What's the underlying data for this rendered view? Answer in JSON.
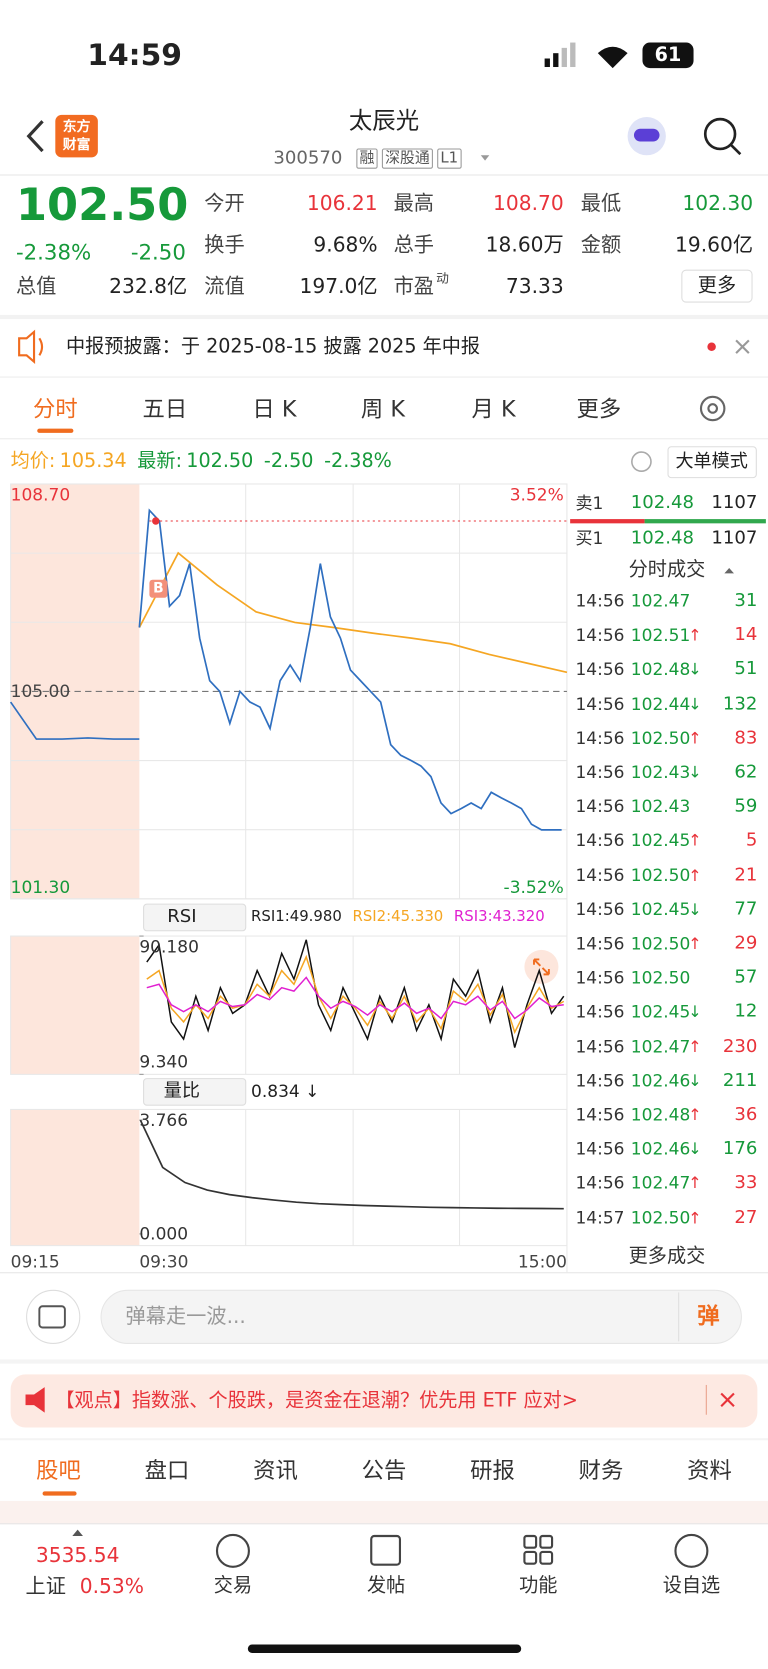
{
  "status": {
    "time": "14:59",
    "battery": "61"
  },
  "header": {
    "logo": [
      "东方",
      "财富"
    ],
    "title": "太辰光",
    "code": "300570",
    "tags": [
      "融",
      "深股通",
      "L1"
    ]
  },
  "quote": {
    "price": "102.50",
    "change_pct": "-2.38%",
    "change": "-2.50",
    "stats": [
      {
        "label": "今开",
        "value": "106.21",
        "color": "red"
      },
      {
        "label": "最高",
        "value": "108.70",
        "color": "red"
      },
      {
        "label": "最低",
        "value": "102.30",
        "color": "green"
      },
      {
        "label": "换手",
        "value": "9.68%",
        "color": "dark"
      },
      {
        "label": "总手",
        "value": "18.60万",
        "color": "dark"
      },
      {
        "label": "金额",
        "value": "19.60亿",
        "color": "dark"
      },
      {
        "label": "总值",
        "value": "232.8亿",
        "color": "dark"
      },
      {
        "label": "流值",
        "value": "197.0亿",
        "color": "dark"
      },
      {
        "label": "市盈",
        "sup": "动",
        "value": "73.33",
        "color": "dark"
      }
    ],
    "more": "更多"
  },
  "notice": "中报预披露：于 2025-08-15 披露 2025 年中报",
  "tabs": [
    "分时",
    "五日",
    "日 K",
    "周 K",
    "月 K",
    "更多"
  ],
  "info": {
    "avg_label": "均价:",
    "avg": "105.34",
    "last_label": "最新:",
    "last": "102.50",
    "change": "-2.50",
    "change_pct": "-2.38%",
    "mode": "大单模式"
  },
  "price_chart": {
    "ylim": [
      101.3,
      108.7
    ],
    "yticks": [
      {
        "value": 108.7,
        "label": "108.70"
      },
      {
        "value": 105,
        "label": "105.00"
      },
      {
        "value": 101.3,
        "label": "101.30"
      }
    ],
    "pct_lim": [
      -3.52,
      3.52
    ],
    "pct_ticks": [
      {
        "value": 3.52,
        "label": "3.52%"
      },
      {
        "value": -3.52,
        "label": "-3.52%"
      }
    ],
    "x_labels": [
      "09:15",
      "09:30",
      "15:00"
    ],
    "marker": "B",
    "premarket": [
      104.81,
      104.15,
      104.15,
      104.17,
      104.15,
      104.15
    ],
    "price": [
      106.14,
      108.23,
      108.04,
      106.52,
      106.71,
      107.28,
      105.95,
      105.19,
      105.0,
      104.43,
      105.0,
      104.81,
      104.72,
      104.34,
      105.19,
      105.47,
      105.19,
      106.14,
      107.28,
      106.33,
      105.95,
      105.38,
      105.19,
      105.0,
      104.81,
      104.05,
      103.86,
      103.77,
      103.67,
      103.48,
      103.01,
      102.82,
      102.91,
      103.01,
      102.91,
      103.2,
      103.1,
      103.01,
      102.91,
      102.63,
      102.53,
      102.53,
      102.53
    ],
    "avg": [
      106.14,
      107.47,
      106.9,
      106.42,
      106.23,
      106.14,
      106.04,
      105.95,
      105.85,
      105.66,
      105.5,
      105.34
    ]
  },
  "rsi": {
    "selector": "RSI",
    "ylim": [
      9.34,
      90.18
    ],
    "yticks": [
      {
        "value": 90.18,
        "label": "90.180"
      },
      {
        "value": 9.34,
        "label": "9.340"
      }
    ],
    "series": [
      {
        "name": "RSI1:49.980",
        "color": "#111111",
        "values": [
          75,
          85,
          40,
          30,
          55,
          35,
          60,
          45,
          50,
          70,
          55,
          80,
          65,
          88,
          50,
          35,
          60,
          45,
          30,
          55,
          40,
          60,
          35,
          50,
          30,
          65,
          55,
          70,
          40,
          60,
          25,
          50,
          70,
          45,
          55
        ]
      },
      {
        "name": "RSI2:45.330",
        "color": "#f5a623",
        "values": [
          65,
          70,
          48,
          40,
          50,
          42,
          55,
          48,
          50,
          62,
          55,
          70,
          62,
          78,
          55,
          42,
          55,
          48,
          38,
          52,
          42,
          55,
          40,
          48,
          36,
          58,
          52,
          62,
          44,
          56,
          34,
          48,
          60,
          48,
          52
        ]
      },
      {
        "name": "RSI3:43.320",
        "color": "#e020d0",
        "values": [
          60,
          62,
          50,
          46,
          50,
          46,
          52,
          49,
          50,
          56,
          53,
          60,
          58,
          66,
          55,
          48,
          52,
          49,
          44,
          50,
          46,
          51,
          45,
          48,
          42,
          52,
          50,
          55,
          47,
          52,
          42,
          47,
          54,
          49,
          50
        ]
      }
    ]
  },
  "vol_ratio": {
    "selector": "量比",
    "current": "0.834 ↓",
    "ylim": [
      0,
      3.766
    ],
    "yticks": [
      {
        "value": 3.766,
        "label": "3.766"
      },
      {
        "value": 0,
        "label": "0.000"
      }
    ],
    "values": [
      3.766,
      2.2,
      1.7,
      1.45,
      1.3,
      1.2,
      1.12,
      1.05,
      1.0,
      0.97,
      0.94,
      0.92,
      0.9,
      0.88,
      0.87,
      0.86,
      0.85,
      0.845,
      0.84,
      0.834
    ]
  },
  "order_book": {
    "sell": {
      "label": "卖1",
      "price": "102.48",
      "volume": "1107"
    },
    "buy": {
      "label": "买1",
      "price": "102.48",
      "volume": "1107"
    }
  },
  "trades": {
    "title": "分时成交",
    "price_color": "green",
    "more": "更多成交",
    "rows": [
      {
        "time": "14:56",
        "price": "102.47",
        "volume": "31",
        "color": "green"
      },
      {
        "time": "14:56",
        "price": "102.51",
        "arrow": "↑",
        "volume": "14",
        "color": "red"
      },
      {
        "time": "14:56",
        "price": "102.48",
        "arrow": "↓",
        "volume": "51",
        "color": "green"
      },
      {
        "time": "14:56",
        "price": "102.44",
        "arrow": "↓",
        "volume": "132",
        "color": "green"
      },
      {
        "time": "14:56",
        "price": "102.50",
        "arrow": "↑",
        "volume": "83",
        "color": "red"
      },
      {
        "time": "14:56",
        "price": "102.43",
        "arrow": "↓",
        "volume": "62",
        "color": "green"
      },
      {
        "time": "14:56",
        "price": "102.43",
        "volume": "59",
        "color": "green"
      },
      {
        "time": "14:56",
        "price": "102.45",
        "arrow": "↑",
        "volume": "5",
        "color": "red"
      },
      {
        "time": "14:56",
        "price": "102.50",
        "arrow": "↑",
        "volume": "21",
        "color": "red"
      },
      {
        "time": "14:56",
        "price": "102.45",
        "arrow": "↓",
        "volume": "77",
        "color": "green"
      },
      {
        "time": "14:56",
        "price": "102.50",
        "arrow": "↑",
        "volume": "29",
        "color": "red"
      },
      {
        "time": "14:56",
        "price": "102.50",
        "volume": "57",
        "color": "green"
      },
      {
        "time": "14:56",
        "price": "102.45",
        "arrow": "↓",
        "volume": "12",
        "color": "green"
      },
      {
        "time": "14:56",
        "price": "102.47",
        "arrow": "↑",
        "volume": "230",
        "color": "red"
      },
      {
        "time": "14:56",
        "price": "102.46",
        "arrow": "↓",
        "volume": "211",
        "color": "green"
      },
      {
        "time": "14:56",
        "price": "102.48",
        "arrow": "↑",
        "volume": "36",
        "color": "red"
      },
      {
        "time": "14:56",
        "price": "102.46",
        "arrow": "↓",
        "volume": "176",
        "color": "green"
      },
      {
        "time": "14:56",
        "price": "102.47",
        "arrow": "↑",
        "volume": "33",
        "color": "red"
      },
      {
        "time": "14:57",
        "price": "102.50",
        "arrow": "↑",
        "volume": "27",
        "color": "red"
      }
    ]
  },
  "comment": {
    "placeholder": "弹幕走一波...",
    "button": "弹"
  },
  "banner": "【观点】指数涨、个股跌，是资金在退潮？优先用 ETF 应对>",
  "bottom_tabs": [
    "股吧",
    "盘口",
    "资讯",
    "公告",
    "研报",
    "财务",
    "资料"
  ],
  "nav": {
    "index_value": "3535.54",
    "index_name": "上证",
    "index_change": "0.53%",
    "items": [
      "交易",
      "发帖",
      "功能",
      "设自选"
    ]
  }
}
